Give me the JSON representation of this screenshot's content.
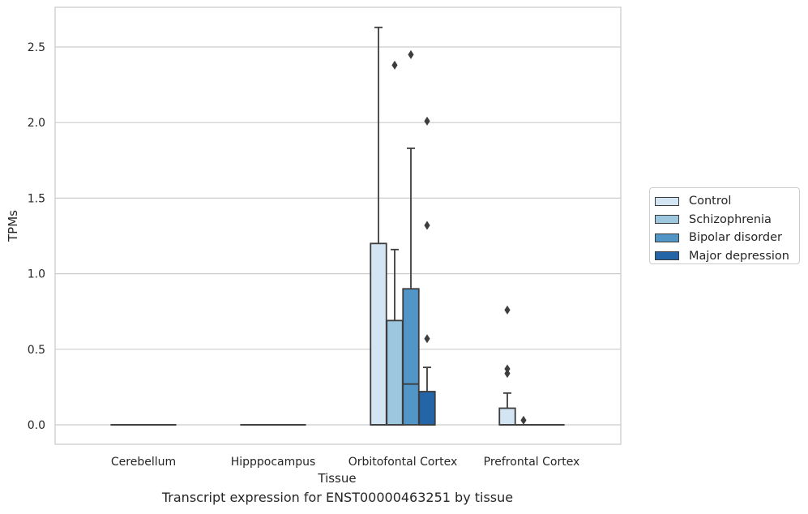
{
  "caption": "Transcript expression for ENST00000463251 by tissue",
  "colors": {
    "control": "#d3e4f3",
    "schizophrenia": "#9dc7df",
    "bipolar": "#5296c8",
    "depression": "#2465a8",
    "grid": "#cccccc",
    "line": "#3d3d3d"
  },
  "legend": [
    {
      "label": "Control",
      "color": "#d3e4f3"
    },
    {
      "label": "Schizophrenia",
      "color": "#9dc7df"
    },
    {
      "label": "Bipolar disorder",
      "color": "#5296c8"
    },
    {
      "label": "Major depression",
      "color": "#2465a8"
    }
  ],
  "chart_data": {
    "type": "box",
    "title": "",
    "xlabel": "Tissue",
    "ylabel": "TPMs",
    "ylim": [
      -0.13,
      2.77
    ],
    "yticks": [
      0.0,
      0.5,
      1.0,
      1.5,
      2.0,
      2.5
    ],
    "ytick_labels": [
      "0.0",
      "0.5",
      "1.0",
      "1.5",
      "2.0",
      "2.5"
    ],
    "grid": "horizontal",
    "legend_position": "right",
    "categories": [
      "Cerebellum",
      "Hipppocampus",
      "Orbitofontal Cortex",
      "Prefrontal Cortex"
    ],
    "series": [
      {
        "name": "Control",
        "boxes": [
          {
            "q1": 0,
            "median": 0,
            "q3": 0,
            "whislo": 0,
            "whishi": 0,
            "fliers": []
          },
          {
            "q1": 0,
            "median": 0,
            "q3": 0,
            "whislo": 0,
            "whishi": 0,
            "fliers": []
          },
          {
            "q1": 0,
            "median": 0,
            "q3": 1.2,
            "whislo": 0,
            "whishi": 2.63,
            "fliers": []
          },
          {
            "q1": 0,
            "median": 0,
            "q3": 0.11,
            "whislo": 0,
            "whishi": 0.21,
            "fliers": [
              0.34,
              0.37,
              0.76
            ]
          }
        ]
      },
      {
        "name": "Schizophrenia",
        "boxes": [
          {
            "q1": 0,
            "median": 0,
            "q3": 0,
            "whislo": 0,
            "whishi": 0,
            "fliers": []
          },
          {
            "q1": 0,
            "median": 0,
            "q3": 0,
            "whislo": 0,
            "whishi": 0,
            "fliers": []
          },
          {
            "q1": 0,
            "median": 0,
            "q3": 0.69,
            "whislo": 0,
            "whishi": 1.16,
            "fliers": [
              2.38
            ]
          },
          {
            "q1": 0,
            "median": 0,
            "q3": 0,
            "whislo": 0,
            "whishi": 0,
            "fliers": [
              0.03
            ]
          }
        ]
      },
      {
        "name": "Bipolar disorder",
        "boxes": [
          {
            "q1": 0,
            "median": 0,
            "q3": 0,
            "whislo": 0,
            "whishi": 0,
            "fliers": []
          },
          {
            "q1": 0,
            "median": 0,
            "q3": 0,
            "whislo": 0,
            "whishi": 0,
            "fliers": []
          },
          {
            "q1": 0,
            "median": 0.27,
            "q3": 0.9,
            "whislo": 0,
            "whishi": 1.83,
            "fliers": [
              2.45
            ]
          },
          {
            "q1": 0,
            "median": 0,
            "q3": 0,
            "whislo": 0,
            "whishi": 0,
            "fliers": []
          }
        ]
      },
      {
        "name": "Major depression",
        "boxes": [
          {
            "q1": 0,
            "median": 0,
            "q3": 0,
            "whislo": 0,
            "whishi": 0,
            "fliers": []
          },
          {
            "q1": 0,
            "median": 0,
            "q3": 0,
            "whislo": 0,
            "whishi": 0,
            "fliers": []
          },
          {
            "q1": 0,
            "median": 0,
            "q3": 0.22,
            "whislo": 0,
            "whishi": 0.38,
            "fliers": [
              0.57,
              1.32,
              2.01
            ]
          },
          {
            "q1": 0,
            "median": 0,
            "q3": 0,
            "whislo": 0,
            "whishi": 0,
            "fliers": []
          }
        ]
      }
    ]
  }
}
